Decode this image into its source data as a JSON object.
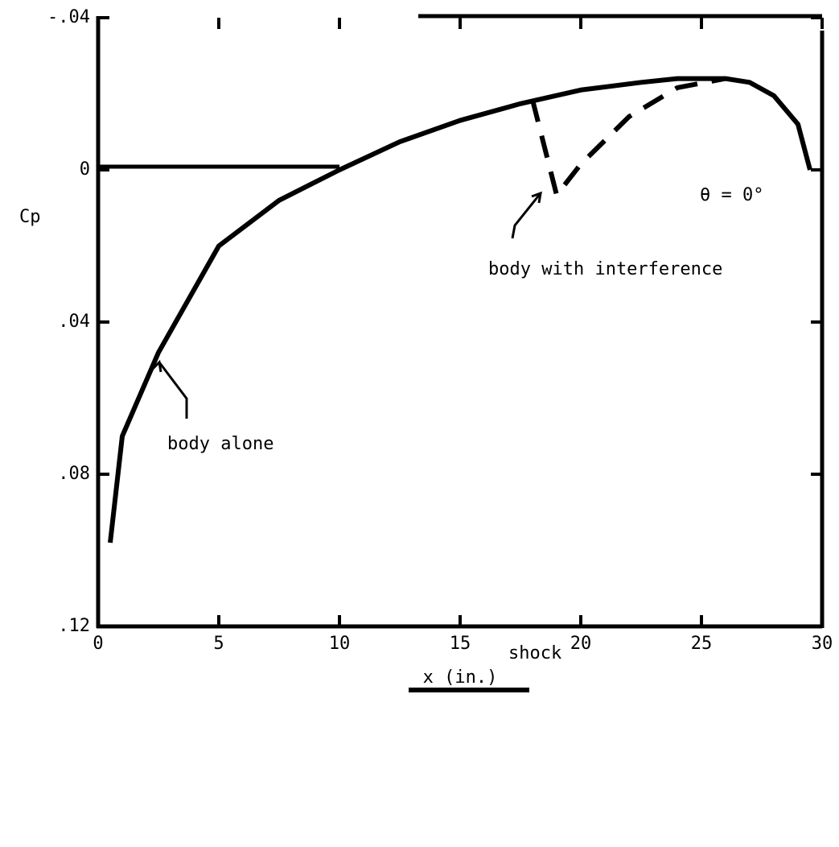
{
  "chart_data": {
    "type": "line",
    "x_label": "x (in.)",
    "y_label": "Cp",
    "xlim": [
      0,
      30
    ],
    "xticks": [
      0,
      5,
      10,
      15,
      20,
      25,
      30
    ],
    "ylim": [
      -0.04,
      0.12
    ],
    "y_inverted": true,
    "yticks": [
      {
        "value": -0.04,
        "label": "-.04"
      },
      0,
      {
        "value": 0.04,
        "label": ".04"
      },
      {
        "value": 0.08,
        "label": ".08"
      },
      {
        "value": 0.12,
        "label": ".12"
      }
    ],
    "series": [
      {
        "name": "body alone",
        "color": "#000000",
        "dash": false,
        "x": [
          0.5,
          1,
          2.5,
          5,
          7.5,
          10,
          12.5,
          15,
          17.5,
          20,
          22.5,
          24,
          26,
          27,
          28,
          29,
          29.5
        ],
        "values": [
          0.098,
          0.07,
          0.048,
          0.02,
          0.008,
          0,
          -0.0074,
          -0.013,
          -0.0174,
          -0.021,
          -0.023,
          -0.024,
          -0.024,
          -0.023,
          -0.0195,
          -0.012,
          0
        ]
      },
      {
        "name": "body with interference",
        "color": "#000000",
        "dash": true,
        "x": [
          18,
          19,
          20,
          22,
          24,
          26
        ],
        "values": [
          -0.0184,
          0.0066,
          -0.0015,
          -0.014,
          -0.0216,
          -0.024
        ]
      }
    ],
    "annotations": [
      "θ = 0°",
      "shock"
    ]
  }
}
